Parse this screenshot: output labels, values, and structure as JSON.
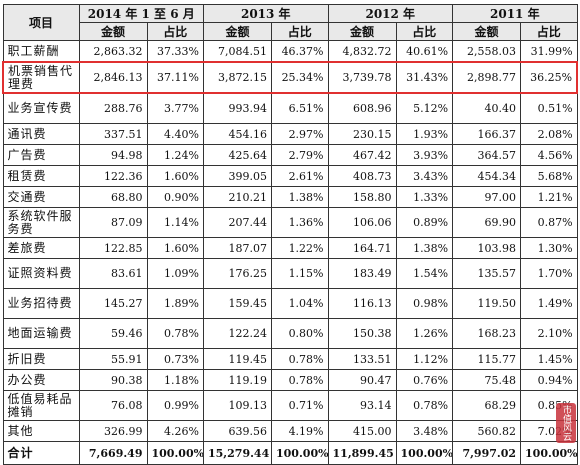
{
  "table": {
    "header": {
      "item_label": "项目",
      "periods": [
        "2014 年 1 至 6 月",
        "2013 年",
        "2012 年",
        "2011 年"
      ],
      "amount_label": "金额",
      "share_label": "占比"
    },
    "rows": [
      {
        "label": "职工薪酬",
        "tall": false,
        "highlight": false,
        "values": [
          "2,863.32",
          "37.33%",
          "7,084.51",
          "46.37%",
          "4,832.72",
          "40.61%",
          "2,558.03",
          "31.99%"
        ]
      },
      {
        "label": "机票销售代理费",
        "tall": true,
        "highlight": true,
        "values": [
          "2,846.13",
          "37.11%",
          "3,872.15",
          "25.34%",
          "3,739.78",
          "31.43%",
          "2,898.77",
          "36.25%"
        ]
      },
      {
        "label": "业务宣传费",
        "tall": true,
        "highlight": false,
        "values": [
          "288.76",
          "3.77%",
          "993.94",
          "6.51%",
          "608.96",
          "5.12%",
          "40.40",
          "0.51%"
        ]
      },
      {
        "label": "通讯费",
        "tall": false,
        "highlight": false,
        "values": [
          "337.51",
          "4.40%",
          "454.16",
          "2.97%",
          "230.15",
          "1.93%",
          "166.37",
          "2.08%"
        ]
      },
      {
        "label": "广告费",
        "tall": false,
        "highlight": false,
        "values": [
          "94.98",
          "1.24%",
          "425.64",
          "2.79%",
          "467.42",
          "3.93%",
          "364.57",
          "4.56%"
        ]
      },
      {
        "label": "租赁费",
        "tall": false,
        "highlight": false,
        "values": [
          "122.36",
          "1.60%",
          "399.05",
          "2.61%",
          "408.73",
          "3.43%",
          "454.34",
          "5.68%"
        ]
      },
      {
        "label": "交通费",
        "tall": false,
        "highlight": false,
        "values": [
          "68.80",
          "0.90%",
          "210.21",
          "1.38%",
          "158.80",
          "1.33%",
          "97.00",
          "1.21%"
        ]
      },
      {
        "label": "系统软件服务费",
        "tall": true,
        "highlight": false,
        "values": [
          "87.09",
          "1.14%",
          "207.44",
          "1.36%",
          "106.06",
          "0.89%",
          "69.90",
          "0.87%"
        ]
      },
      {
        "label": "差旅费",
        "tall": false,
        "highlight": false,
        "values": [
          "122.85",
          "1.60%",
          "187.07",
          "1.22%",
          "164.71",
          "1.38%",
          "103.98",
          "1.30%"
        ]
      },
      {
        "label": "证照资料费",
        "tall": true,
        "highlight": false,
        "values": [
          "83.61",
          "1.09%",
          "176.25",
          "1.15%",
          "183.49",
          "1.54%",
          "135.57",
          "1.70%"
        ]
      },
      {
        "label": "业务招待费",
        "tall": true,
        "highlight": false,
        "values": [
          "145.27",
          "1.89%",
          "159.45",
          "1.04%",
          "116.13",
          "0.98%",
          "119.50",
          "1.49%"
        ]
      },
      {
        "label": "地面运输费",
        "tall": true,
        "highlight": false,
        "values": [
          "59.46",
          "0.78%",
          "122.24",
          "0.80%",
          "150.38",
          "1.26%",
          "168.23",
          "2.10%"
        ]
      },
      {
        "label": "折旧费",
        "tall": false,
        "highlight": false,
        "values": [
          "55.91",
          "0.73%",
          "119.45",
          "0.78%",
          "133.51",
          "1.12%",
          "115.77",
          "1.45%"
        ]
      },
      {
        "label": "办公费",
        "tall": false,
        "highlight": false,
        "values": [
          "90.38",
          "1.18%",
          "119.19",
          "0.78%",
          "90.47",
          "0.76%",
          "75.48",
          "0.94%"
        ]
      },
      {
        "label": "低值易耗品摊销",
        "tall": true,
        "highlight": false,
        "values": [
          "76.08",
          "0.99%",
          "109.13",
          "0.71%",
          "93.14",
          "0.78%",
          "68.29",
          "0.85%"
        ]
      },
      {
        "label": "其他",
        "tall": false,
        "highlight": false,
        "values": [
          "326.99",
          "4.26%",
          "639.56",
          "4.19%",
          "415.00",
          "3.48%",
          "560.82",
          "7.02%"
        ]
      }
    ],
    "total": {
      "label": "合计",
      "values": [
        "7,669.49",
        "100.00%",
        "15,279.44",
        "100.00%",
        "11,899.45",
        "100.00%",
        "7,997.02",
        "100.00%"
      ]
    }
  },
  "watermark": {
    "text": "市值风云"
  }
}
